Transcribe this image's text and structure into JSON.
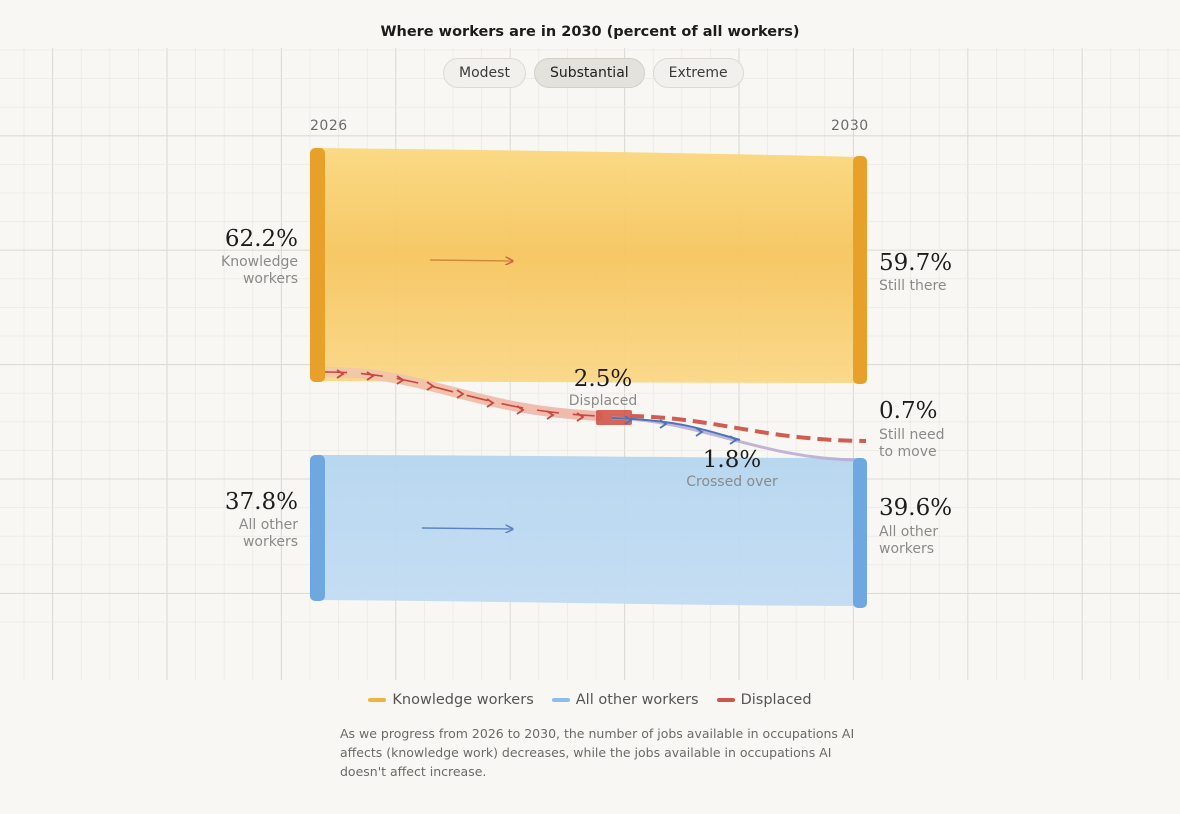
{
  "title": "Where workers are in 2030 (percent of all workers)",
  "tabs": [
    {
      "label": "Modest",
      "active": false
    },
    {
      "label": "Substantial",
      "active": true
    },
    {
      "label": "Extreme",
      "active": false
    }
  ],
  "colors": {
    "knowledge": "#f5c45a",
    "knowledge_edge": "#e7a12a",
    "other": "#a9cfee",
    "other_edge": "#6fa8e0",
    "displaced": "#d0544a",
    "crossed": "#4b74b8",
    "still_move": "#d15c52"
  },
  "chart_data": {
    "type": "sankey",
    "title": "Where workers are in 2030 (percent of all workers)",
    "x_labels": [
      "2026",
      "2030"
    ],
    "nodes_2026": [
      {
        "name": "Knowledge workers",
        "value": 62.2,
        "label_pct": "62.2%",
        "label": "Knowledge workers"
      },
      {
        "name": "All other workers",
        "value": 37.8,
        "label_pct": "37.8%",
        "label": "All other workers"
      }
    ],
    "nodes_2030": [
      {
        "name": "Still there",
        "value": 59.7,
        "label_pct": "59.7%",
        "label": "Still there"
      },
      {
        "name": "Still need to move",
        "value": 0.7,
        "label_pct": "0.7%",
        "label": "Still need to move"
      },
      {
        "name": "All other workers",
        "value": 39.6,
        "label_pct": "39.6%",
        "label": "All other workers"
      }
    ],
    "flows": [
      {
        "from": "Knowledge workers",
        "to": "Still there",
        "value": 59.7
      },
      {
        "from": "Knowledge workers",
        "to": "Displaced",
        "value": 2.5
      },
      {
        "from": "Displaced",
        "to": "All other workers",
        "value": 1.8
      },
      {
        "from": "Displaced",
        "to": "Still need to move",
        "value": 0.7
      },
      {
        "from": "All other workers",
        "to": "All other workers",
        "value": 37.8
      }
    ],
    "annotations": [
      {
        "pct": "2.5%",
        "label": "Displaced"
      },
      {
        "pct": "1.8%",
        "label": "Crossed over"
      }
    ],
    "legend": [
      "Knowledge workers",
      "All other workers",
      "Displaced"
    ]
  },
  "labels": {
    "year_start": "2026",
    "year_end": "2030",
    "kw_pct": "62.2%",
    "kw_label": "Knowledge workers",
    "other_pct": "37.8%",
    "other_label": "All other workers",
    "still_pct": "59.7%",
    "still_label": "Still there",
    "move_pct": "0.7%",
    "move_label": "Still need to move",
    "other2030_pct": "39.6%",
    "other2030_label": "All other workers",
    "displaced_pct": "2.5%",
    "displaced_label": "Displaced",
    "crossed_pct": "1.8%",
    "crossed_label": "Crossed over"
  },
  "legend": {
    "knowledge": "Knowledge workers",
    "other": "All other workers",
    "displaced": "Displaced"
  },
  "caption": "As we progress from 2026 to 2030, the number of jobs available in occupations AI affects (knowledge work) decreases, while the jobs available in occupations AI doesn't affect increase."
}
